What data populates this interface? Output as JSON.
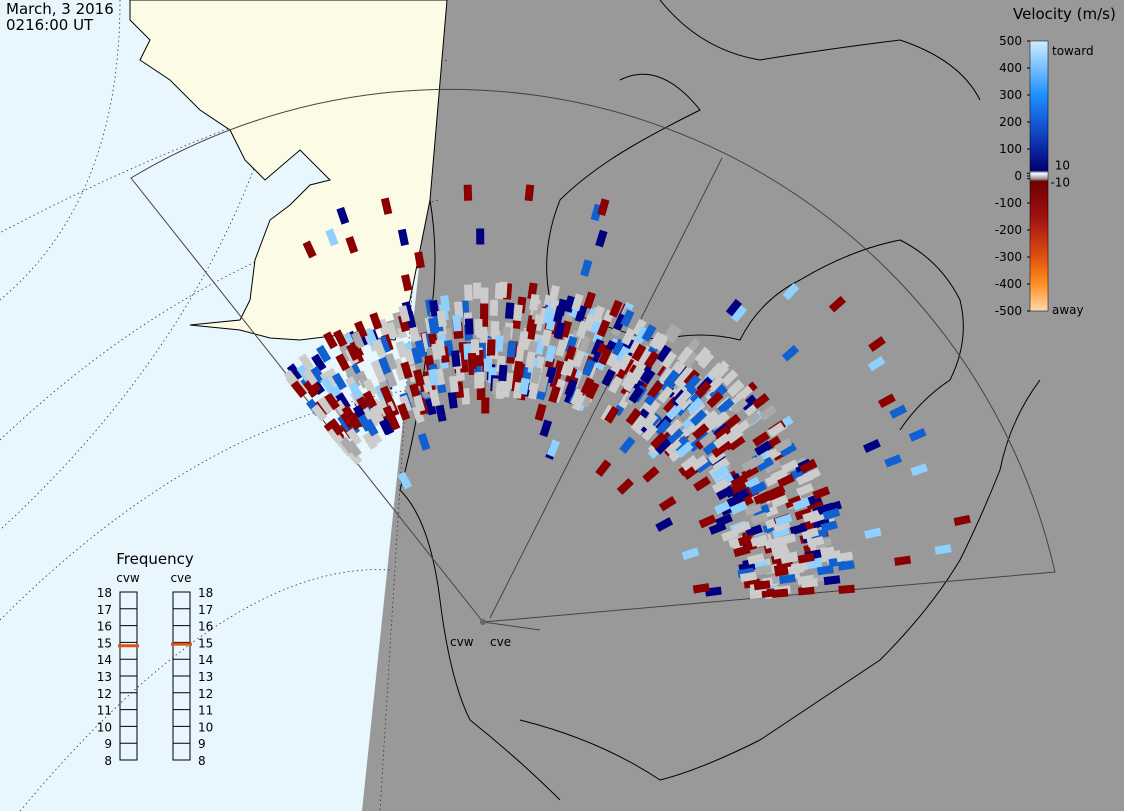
{
  "header": {
    "date": "March, 3 2016",
    "time": "0216:00 UT"
  },
  "velocity_scale": {
    "title": "Velocity (m/s)",
    "ylim": [
      -500,
      500
    ],
    "ticks": [
      500,
      400,
      300,
      200,
      100,
      10,
      0,
      -10,
      -100,
      -200,
      -300,
      -400,
      -500
    ],
    "toward": "toward",
    "away": "away"
  },
  "frequency": {
    "title": "Frequency",
    "ylim": [
      8,
      18
    ],
    "ticks": [
      18,
      17,
      16,
      15,
      14,
      13,
      12,
      11,
      10,
      9,
      8
    ],
    "color": "#e0501a",
    "radars": [
      {
        "name": "cvw",
        "value": 14.8
      },
      {
        "name": "cve",
        "value": 14.9
      }
    ]
  },
  "radars": [
    {
      "label": "cvw"
    },
    {
      "label": "cve"
    }
  ]
}
